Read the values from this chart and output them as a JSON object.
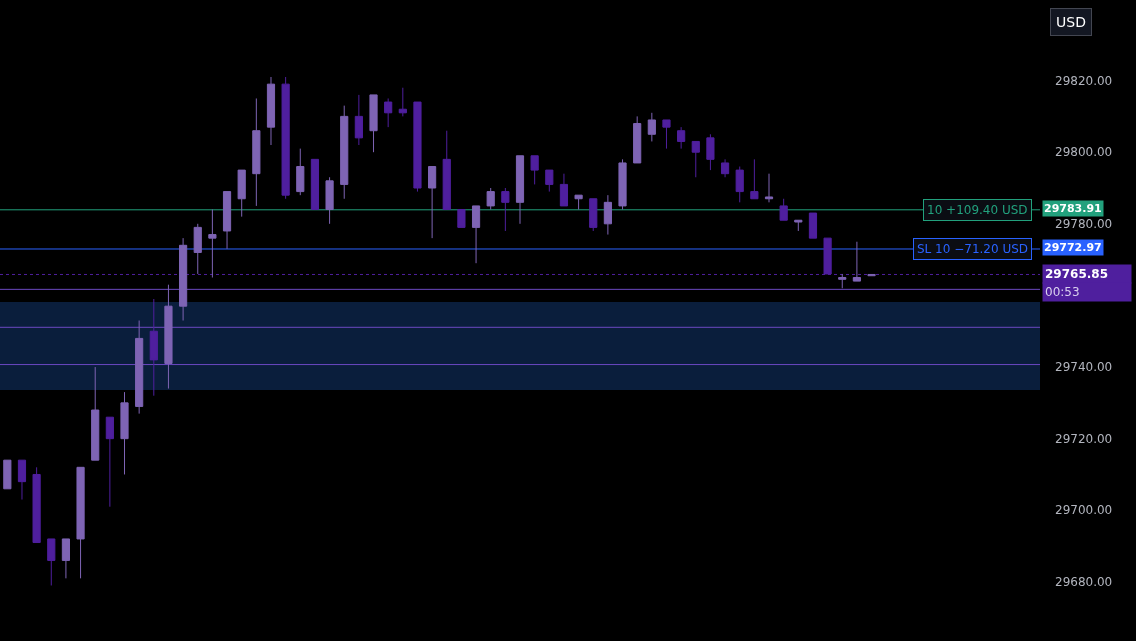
{
  "chart_data": {
    "type": "candlestick",
    "categories": [
      null,
      null,
      null,
      null,
      null,
      null,
      null,
      null,
      null,
      null,
      null,
      null,
      null,
      null,
      null,
      null,
      null,
      null,
      null,
      null,
      null,
      null,
      null,
      null,
      null,
      null,
      null,
      null,
      null,
      null,
      null,
      null,
      null,
      null,
      null,
      null,
      null,
      null,
      null,
      null,
      null,
      null,
      null,
      null,
      null,
      null,
      null,
      null,
      null,
      null,
      null,
      null,
      null,
      null,
      null,
      null,
      null,
      null,
      null,
      null,
      null,
      null,
      null,
      null,
      null,
      null,
      null,
      null,
      null,
      null,
      null
    ],
    "ohlc": [
      [
        29706,
        29714,
        29706,
        29714
      ],
      [
        29714,
        29714,
        29703,
        29708
      ],
      [
        29710,
        29712,
        29691,
        29691
      ],
      [
        29692,
        29692,
        29679,
        29686
      ],
      [
        29686,
        29692,
        29681,
        29692
      ],
      [
        29692,
        29712,
        29681,
        29712
      ],
      [
        29714,
        29740,
        29714,
        29728
      ],
      [
        29726,
        29726,
        29701,
        29720
      ],
      [
        29720,
        29733,
        29710,
        29730
      ],
      [
        29729,
        29753,
        29727,
        29748
      ],
      [
        29750,
        29759,
        29732,
        29742
      ],
      [
        29741,
        29763,
        29734,
        29757
      ],
      [
        29757,
        29776,
        29753,
        29774
      ],
      [
        29772,
        29780,
        29766,
        29779
      ],
      [
        29776,
        29784,
        29765,
        29777
      ],
      [
        29778,
        29789,
        29773,
        29789
      ],
      [
        29787,
        29795,
        29782,
        29795
      ],
      [
        29794,
        29815,
        29785,
        29806
      ],
      [
        29807,
        29821,
        29802,
        29819
      ],
      [
        29819,
        29821,
        29787,
        29788
      ],
      [
        29789,
        29801,
        29788,
        29796
      ],
      [
        29798,
        29798,
        29784,
        29784
      ],
      [
        29784,
        29793,
        29780,
        29792
      ],
      [
        29791,
        29813,
        29787,
        29810
      ],
      [
        29810,
        29816,
        29802,
        29804
      ],
      [
        29806,
        29816,
        29800,
        29816
      ],
      [
        29814,
        29815,
        29807,
        29811
      ],
      [
        29812,
        29818,
        29810,
        29811
      ],
      [
        29814,
        29814,
        29789,
        29790
      ],
      [
        29790,
        29796,
        29776,
        29796
      ],
      [
        29798,
        29806,
        29784,
        29784
      ],
      [
        29784,
        29784,
        29779,
        29779
      ],
      [
        29779,
        29785,
        29769,
        29785
      ],
      [
        29785,
        29790,
        29784,
        29789
      ],
      [
        29789,
        29790,
        29778,
        29786
      ],
      [
        29786,
        29799,
        29780,
        29799
      ],
      [
        29799,
        29799,
        29791,
        29795
      ],
      [
        29795,
        29795,
        29789,
        29791
      ],
      [
        29791,
        29794,
        29785,
        29785
      ],
      [
        29787,
        29788,
        29784,
        29788
      ],
      [
        29787,
        29787,
        29778,
        29779
      ],
      [
        29780,
        29788,
        29777,
        29786
      ],
      [
        29785,
        29798,
        29784,
        29797
      ],
      [
        29797,
        29810,
        29797,
        29808
      ],
      [
        29805,
        29811,
        29803,
        29809
      ],
      [
        29809,
        29809,
        29801,
        29807
      ],
      [
        29806,
        29807,
        29801,
        29803
      ],
      [
        29803,
        29803,
        29793,
        29800
      ],
      [
        29804,
        29805,
        29795,
        29798
      ],
      [
        29797,
        29798,
        29793,
        29794
      ],
      [
        29795,
        29796,
        29786,
        29789
      ],
      [
        29789,
        29798,
        29787,
        29787
      ],
      [
        29787,
        29794,
        29786,
        29787.5
      ],
      [
        29785,
        29787,
        29781,
        29781
      ],
      [
        29780.5,
        29781,
        29778,
        29781
      ],
      [
        29783,
        29783,
        29776,
        29776
      ],
      [
        29776,
        29776,
        29766,
        29766
      ],
      [
        29764.5,
        29766,
        29762,
        29765
      ],
      [
        29764,
        29775,
        29764,
        29765
      ],
      [
        29765.5,
        29765.85,
        29765.5,
        29765.85
      ],
      null,
      null,
      null,
      null,
      null,
      null,
      null,
      null,
      null,
      null,
      null
    ],
    "colors": [
      "#7e64b4",
      "#4f1f9e",
      "#4f1f9e",
      "#4f1f9e",
      "#7e64b4",
      "#7e64b4",
      "#7e64b4",
      "#4f1f9e",
      "#7e64b4",
      "#7e64b4",
      "#4f1f9e",
      "#7e64b4",
      "#7e64b4",
      "#7e64b4",
      "#7e64b4",
      "#7e64b4",
      "#7e64b4",
      "#7e64b4",
      "#7e64b4",
      "#4f1f9e",
      "#7e64b4",
      "#4f1f9e",
      "#7e64b4",
      "#7e64b4",
      "#4f1f9e",
      "#7e64b4",
      "#4f1f9e",
      "#4f1f9e",
      "#4f1f9e",
      "#7e64b4",
      "#4f1f9e",
      "#4f1f9e",
      "#7e64b4",
      "#7e64b4",
      "#4f1f9e",
      "#7e64b4",
      "#4f1f9e",
      "#4f1f9e",
      "#4f1f9e",
      "#7e64b4",
      "#4f1f9e",
      "#7e64b4",
      "#7e64b4",
      "#7e64b4",
      "#7e64b4",
      "#4f1f9e",
      "#4f1f9e",
      "#4f1f9e",
      "#4f1f9e",
      "#4f1f9e",
      "#4f1f9e",
      "#4f1f9e",
      "#7e64b4",
      "#4f1f9e",
      "#7e64b4",
      "#4f1f9e",
      "#4f1f9e",
      "#7e64b4",
      "#7e64b4",
      "#7e64b4",
      null,
      null,
      null,
      null,
      null,
      null,
      null,
      null,
      null,
      null,
      null
    ],
    "ylim": [
      29663.5,
      29842.5
    ],
    "yticks": [
      {
        "value": 29680,
        "label": "29680.00"
      },
      {
        "value": 29700,
        "label": "29700.00"
      },
      {
        "value": 29720,
        "label": "29720.00"
      },
      {
        "value": 29740,
        "label": "29740.00"
      },
      {
        "value": 29780,
        "label": "29780.00"
      },
      {
        "value": 29800,
        "label": "29800.00"
      },
      {
        "value": 29820,
        "label": "29820.00"
      }
    ],
    "ylabel": "USD",
    "tick_labels": "y",
    "ref_lines": [
      {
        "axis": "y",
        "value": 29783.91,
        "label": "29783.91",
        "color": "#22a17d",
        "line_style": "solid"
      },
      {
        "axis": "y",
        "value": 29772.97,
        "label": "29772.97",
        "color": "#2962ff",
        "line_style": "solid"
      },
      {
        "axis": "y",
        "value": 29765.85,
        "label": "29765.85",
        "color": "#4f1f9e",
        "line_style": "dotted"
      },
      {
        "axis": "y",
        "value": 29761.7,
        "color": "#6b48c0",
        "line_style": "solid"
      },
      {
        "axis": "y",
        "value": 29751.1,
        "color": "#6b48c0",
        "line_style": "solid"
      },
      {
        "axis": "y",
        "value": 29740.7,
        "color": "#6b48c0",
        "line_style": "solid"
      }
    ],
    "bands": [
      {
        "axis": "y",
        "from": 29758.2,
        "to": 29733.6,
        "color": "#0a1e3c"
      }
    ],
    "annotations": [
      {
        "text": "10 +109.40 USD",
        "y": 29783.91
      },
      {
        "text": "SL 10 −71.20 USD",
        "y": 29772.97
      },
      "00:53"
    ]
  }
}
